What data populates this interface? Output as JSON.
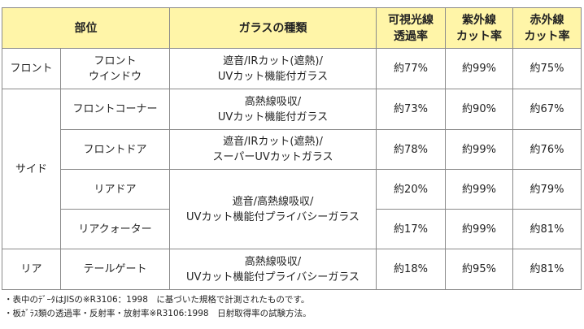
{
  "header": {
    "part": "部位",
    "glass_type": "ガラスの種類",
    "visible": [
      "可視光線",
      "透過率"
    ],
    "uv": [
      "紫外線",
      "カット率"
    ],
    "ir": [
      "赤外線",
      "カット率"
    ]
  },
  "rows": [
    {
      "group": "フロント",
      "part": [
        "フロント",
        "ウインドウ"
      ],
      "glass": [
        "遮音/IRカット(遮熱)/",
        "UVカット機能付ガラス"
      ],
      "visible": "約77%",
      "uv": "約99%",
      "ir": "約75%"
    },
    {
      "group": "サイド",
      "part": [
        "フロントコーナー"
      ],
      "glass": [
        "高熱線吸収/",
        "UVカット機能付ガラス"
      ],
      "visible": "約73%",
      "uv": "約90%",
      "ir": "約67%"
    },
    {
      "part": [
        "フロントドア"
      ],
      "glass": [
        "遮音/IRカット(遮熱)/",
        "スーパーUVカットガラス"
      ],
      "visible": "約78%",
      "uv": "約99%",
      "ir": "約76%"
    },
    {
      "part": [
        "リアドア"
      ],
      "glass": [
        "遮音/高熱線吸収/",
        "UVカット機能付プライバシーガラス"
      ],
      "visible": "約20%",
      "uv": "約99%",
      "ir": "約79%"
    },
    {
      "part": [
        "リアクォーター"
      ],
      "visible": "約17%",
      "uv": "約99%",
      "ir": "約81%"
    },
    {
      "group": "リア",
      "part": [
        "テールゲート"
      ],
      "glass": [
        "高熱線吸収/",
        "UVカット機能付プライバシーガラス"
      ],
      "visible": "約18%",
      "uv": "約95%",
      "ir": "約81%"
    }
  ],
  "notes": [
    "・表中のﾃﾞｰﾀはJISの※R3106：1998　に基づいた規格で計測されたものです。",
    "・板ｶﾞﾗｽ類の透過率・反射率・放射率※R3106:1998　日射取得率の試験方法。"
  ],
  "colors": {
    "header_bg": "#fff5a8",
    "border": "#8a8a8a"
  }
}
